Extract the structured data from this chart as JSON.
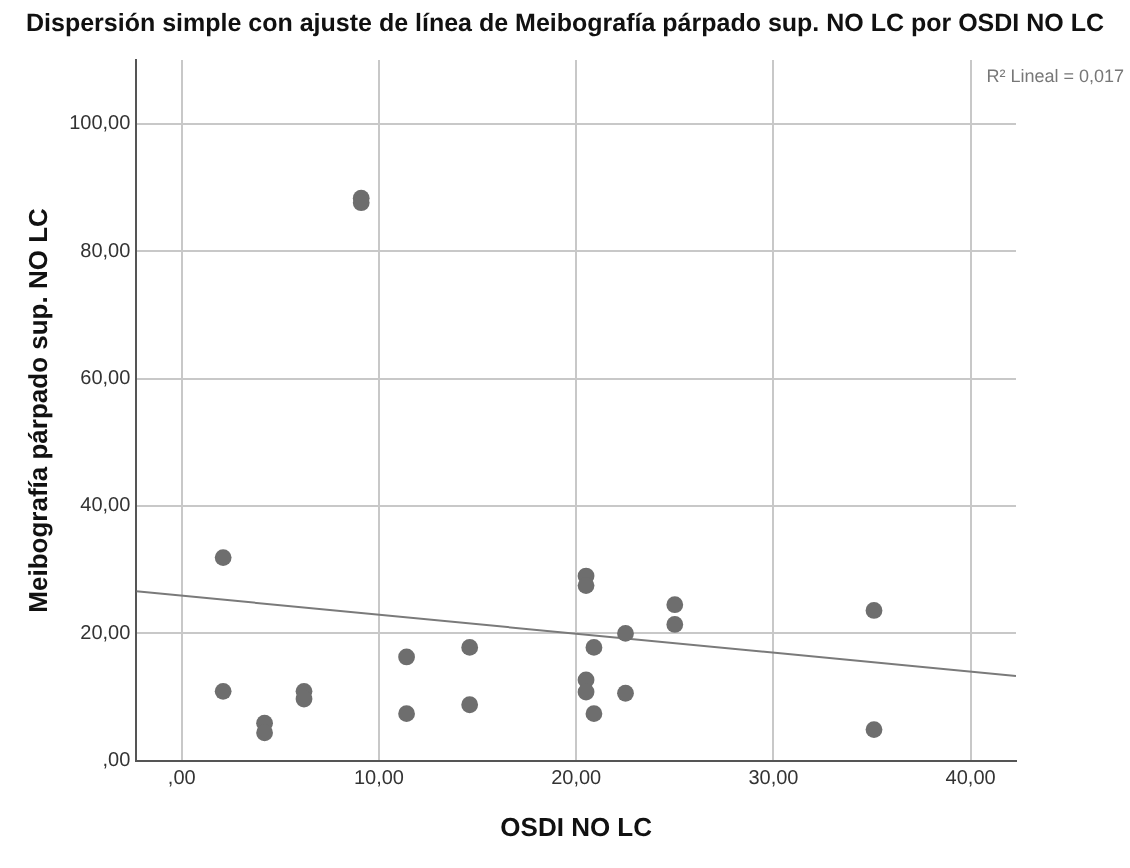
{
  "chart_data": {
    "type": "scatter",
    "title": "Dispersión simple con ajuste de línea de Meibografía párpado sup. NO LC por OSDI NO LC",
    "xlabel": "OSDI NO LC",
    "ylabel": "Meibografía párpado sup. NO LC",
    "annotations": [
      "R² Lineal = 0,017"
    ],
    "x": [
      2.1,
      2.1,
      4.2,
      4.2,
      6.2,
      6.2,
      9.1,
      9.1,
      11.4,
      11.4,
      14.6,
      14.6,
      20.5,
      20.5,
      20.5,
      20.5,
      20.9,
      20.9,
      22.5,
      22.5,
      25.0,
      25.0,
      35.1,
      35.1
    ],
    "series": [
      {
        "color": "#6e6e6e",
        "values": [
          31.9,
          10.9,
          5.9,
          4.4,
          10.9,
          9.7,
          88.3,
          87.6,
          16.3,
          7.4,
          17.8,
          8.8,
          29.0,
          27.5,
          12.7,
          10.8,
          17.8,
          7.4,
          20.0,
          10.6,
          24.5,
          21.4,
          23.6,
          4.9
        ]
      },
      {
        "type": "line",
        "color": "#7a7a7a",
        "x": [
          -2.3,
          42.3
        ],
        "values": [
          26.6,
          13.3
        ],
        "marker": "none"
      }
    ],
    "marker": "circle",
    "grid": true,
    "legend": false,
    "xlim": [
      -2.3,
      42.3
    ],
    "ylim": [
      0,
      110
    ],
    "xticks": [
      {
        "value": 0,
        "label": ",00"
      },
      {
        "value": 10,
        "label": "10,00"
      },
      {
        "value": 20,
        "label": "20,00"
      },
      {
        "value": 30,
        "label": "30,00"
      },
      {
        "value": 40,
        "label": "40,00"
      }
    ],
    "yticks": [
      {
        "value": 0,
        "label": ",00"
      },
      {
        "value": 20,
        "label": "20,00"
      },
      {
        "value": 40,
        "label": "40,00"
      },
      {
        "value": 60,
        "label": "60,00"
      },
      {
        "value": 80,
        "label": "80,00"
      },
      {
        "value": 100,
        "label": "100,00"
      }
    ]
  }
}
